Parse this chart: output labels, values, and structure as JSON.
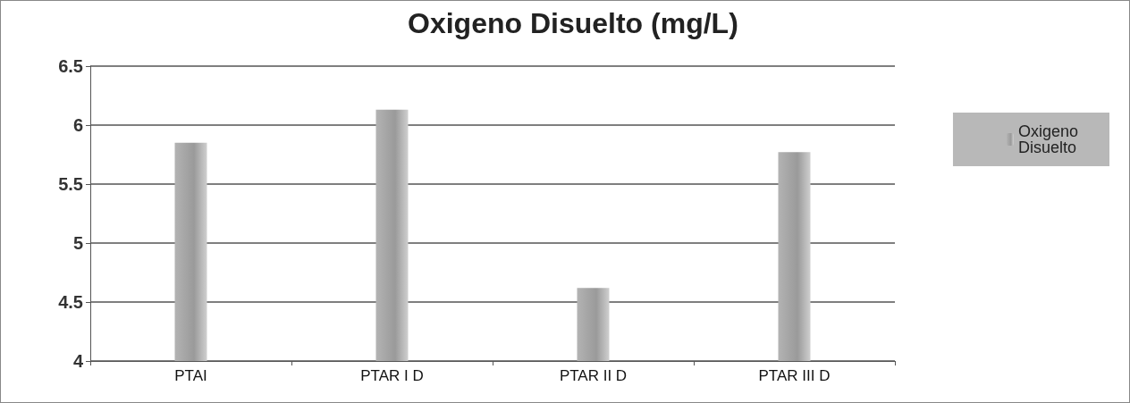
{
  "chart_data": {
    "type": "bar",
    "title": "Oxigeno Disuelto (mg/L)",
    "categories": [
      "PTAI",
      "PTAR I D",
      "PTAR II D",
      "PTAR III D"
    ],
    "series": [
      {
        "name": "Oxigeno Disuelto",
        "color": "#9a9a9a",
        "values": [
          5.85,
          6.13,
          4.62,
          5.77
        ]
      }
    ],
    "ylim": [
      4,
      6.5
    ],
    "yticks": [
      4,
      4.5,
      5,
      5.5,
      6,
      6.5
    ],
    "grid": "y",
    "legend": "right"
  }
}
